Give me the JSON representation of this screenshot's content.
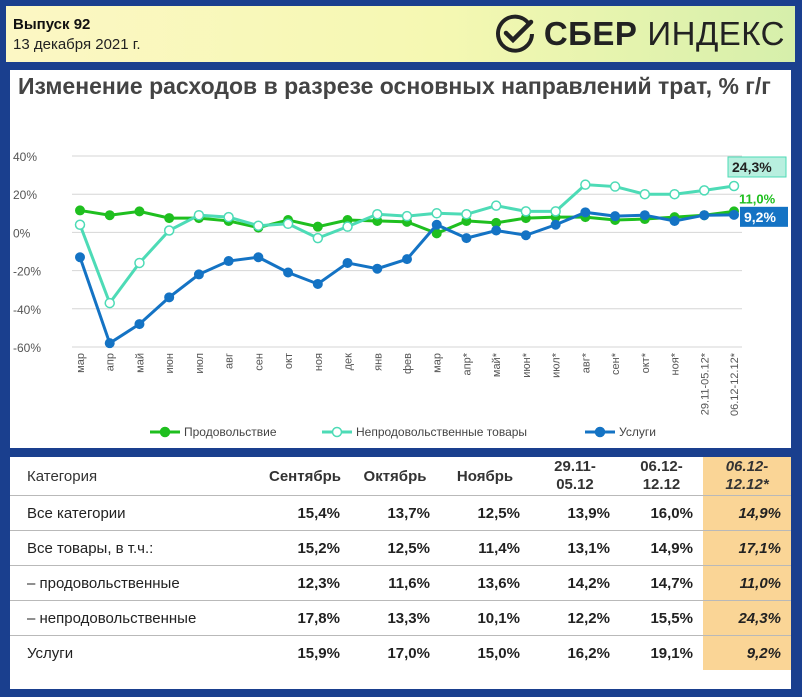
{
  "header": {
    "issue": "Выпуск 92",
    "date": "13 декабря 2021 г.",
    "logo_sber": "СБЕР",
    "logo_index": "ИНДЕКС",
    "logo_icon": "sber-checkmark-icon"
  },
  "chart_data": {
    "type": "line",
    "title": "Изменение расходов в разрезе основных направлений трат, % г/г",
    "categories": [
      "мар",
      "апр",
      "май",
      "июн",
      "июл",
      "авг",
      "сен",
      "окт",
      "ноя",
      "дек",
      "янв",
      "фев",
      "мар",
      "апр*",
      "май*",
      "июн*",
      "июл*",
      "авг*",
      "сен*",
      "окт*",
      "ноя*",
      "29.11-05.12*",
      "06.12-12.12*"
    ],
    "ylim": [
      -60,
      40
    ],
    "yticks": [
      "40%",
      "20%",
      "0%",
      "-20%",
      "-40%",
      "-60%"
    ],
    "grid": true,
    "legend_position": "bottom",
    "series": [
      {
        "name": "Продовольствие",
        "color": "#1fbf1f",
        "hollow": false,
        "values": [
          11.5,
          9,
          11,
          7.5,
          7.5,
          6,
          2.5,
          6.5,
          3,
          6.5,
          6,
          5.5,
          -0.5,
          6,
          5,
          7.5,
          8,
          8,
          6.5,
          7,
          8,
          9,
          11
        ]
      },
      {
        "name": "Непродовольственные товары",
        "color": "#4ddbb6",
        "hollow": true,
        "values": [
          4,
          -37,
          -16,
          1,
          9,
          8,
          3.5,
          4.5,
          -3,
          3,
          9.5,
          8.5,
          10,
          9.5,
          14,
          11,
          11,
          25,
          24,
          20,
          20,
          22,
          24.3
        ]
      },
      {
        "name": "Услуги",
        "color": "#1473c4",
        "hollow": false,
        "values": [
          -13,
          -58,
          -48,
          -34,
          -22,
          -15,
          -13,
          -21,
          -27,
          -16,
          -19,
          -14,
          4,
          -3,
          1,
          -1.5,
          4,
          10.5,
          8.5,
          9,
          6,
          9,
          9.2
        ]
      }
    ],
    "end_labels": [
      "11,0%",
      "24,3%",
      "9,2%"
    ]
  },
  "table": {
    "headers": [
      "Категория",
      "Сентябрь",
      "Октябрь",
      "Ноябрь",
      "29.11-\n05.12",
      "06.12-\n12.12",
      "06.12-\n12.12*"
    ],
    "rows": [
      {
        "category": "Все категории",
        "values": [
          "15,4%",
          "13,7%",
          "12,5%",
          "13,9%",
          "16,0%",
          "14,9%"
        ]
      },
      {
        "category": "Все товары, в т.ч.:",
        "values": [
          "15,2%",
          "12,5%",
          "11,4%",
          "13,1%",
          "14,9%",
          "17,1%"
        ]
      },
      {
        "category": "– продовольственные",
        "values": [
          "12,3%",
          "11,6%",
          "13,6%",
          "14,2%",
          "14,7%",
          "11,0%"
        ]
      },
      {
        "category": "– непродовольственные",
        "values": [
          "17,8%",
          "13,3%",
          "10,1%",
          "12,2%",
          "15,5%",
          "24,3%"
        ]
      },
      {
        "category": "Услуги",
        "values": [
          "15,9%",
          "17,0%",
          "15,0%",
          "16,2%",
          "19,1%",
          "9,2%"
        ]
      }
    ],
    "highlight_color": "#fad596"
  }
}
